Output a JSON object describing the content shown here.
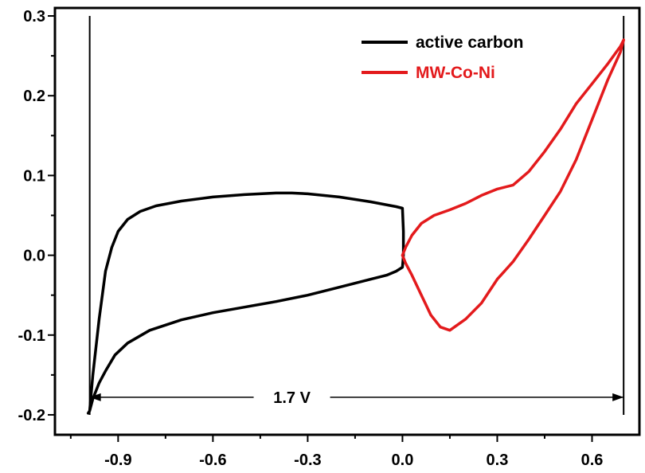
{
  "chart_data": {
    "type": "line",
    "title": "",
    "xlabel": "",
    "ylabel": "",
    "xlim": [
      -1.1,
      0.75
    ],
    "ylim": [
      -0.225,
      0.31
    ],
    "x_ticks": [
      -0.9,
      -0.6,
      -0.3,
      0.0,
      0.3,
      0.6
    ],
    "x_tick_labels": [
      "-0.9",
      "-0.6",
      "-0.3",
      "0.0",
      "0.3",
      "0.6"
    ],
    "y_ticks": [
      -0.2,
      -0.1,
      0.0,
      0.1,
      0.2,
      0.3
    ],
    "y_tick_labels": [
      "-0.2",
      "-0.1",
      "0.0",
      "0.1",
      "0.2",
      "0.3"
    ],
    "grid": false,
    "legend_position": "top-right",
    "series": [
      {
        "name": "active carbon",
        "color": "#000000",
        "x": [
          -0.99,
          -0.98,
          -0.96,
          -0.94,
          -0.92,
          -0.9,
          -0.87,
          -0.83,
          -0.78,
          -0.7,
          -0.6,
          -0.5,
          -0.4,
          -0.35,
          -0.3,
          -0.2,
          -0.1,
          -0.02,
          0.0,
          0.003,
          0.003,
          0.0,
          -0.02,
          -0.05,
          -0.1,
          -0.2,
          -0.3,
          -0.4,
          -0.5,
          -0.6,
          -0.7,
          -0.8,
          -0.87,
          -0.91,
          -0.94,
          -0.96,
          -0.98,
          -0.99,
          -0.995
        ],
        "y": [
          -0.195,
          -0.15,
          -0.08,
          -0.02,
          0.01,
          0.03,
          0.045,
          0.055,
          0.062,
          0.068,
          0.073,
          0.076,
          0.078,
          0.078,
          0.077,
          0.073,
          0.067,
          0.061,
          0.059,
          0.03,
          0.0,
          -0.015,
          -0.02,
          -0.025,
          -0.03,
          -0.04,
          -0.05,
          -0.058,
          -0.065,
          -0.072,
          -0.081,
          -0.094,
          -0.11,
          -0.125,
          -0.145,
          -0.16,
          -0.18,
          -0.195,
          -0.198
        ]
      },
      {
        "name": "MW-Co-Ni",
        "color": "#e31a1c",
        "x": [
          0.0,
          0.01,
          0.03,
          0.06,
          0.1,
          0.15,
          0.2,
          0.25,
          0.3,
          0.35,
          0.4,
          0.45,
          0.5,
          0.55,
          0.6,
          0.65,
          0.69,
          0.7,
          0.69,
          0.65,
          0.6,
          0.55,
          0.5,
          0.45,
          0.4,
          0.35,
          0.3,
          0.25,
          0.2,
          0.15,
          0.12,
          0.09,
          0.06,
          0.03,
          0.01,
          0.0
        ],
        "y": [
          0.0,
          0.01,
          0.025,
          0.04,
          0.05,
          0.057,
          0.065,
          0.075,
          0.083,
          0.088,
          0.105,
          0.13,
          0.158,
          0.19,
          0.215,
          0.24,
          0.262,
          0.27,
          0.255,
          0.22,
          0.17,
          0.12,
          0.08,
          0.05,
          0.02,
          -0.008,
          -0.03,
          -0.06,
          -0.08,
          -0.094,
          -0.09,
          -0.075,
          -0.05,
          -0.025,
          -0.01,
          0.0
        ]
      }
    ],
    "annotations": [
      {
        "text": "1.7 V",
        "x": -0.35,
        "y": -0.178,
        "arrow_from": -0.99,
        "arrow_to": 0.7
      }
    ]
  }
}
